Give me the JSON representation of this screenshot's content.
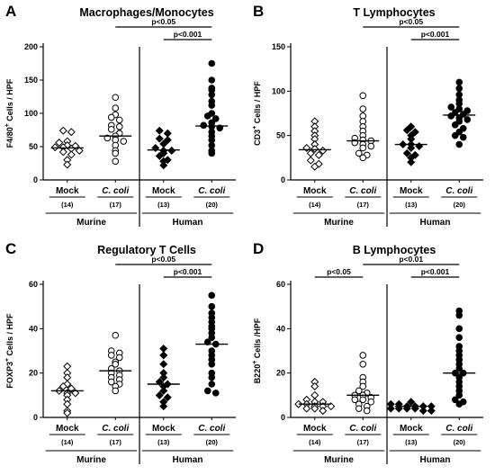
{
  "chart_data": [
    {
      "panel": "A",
      "type": "scatter",
      "title": "Macrophages/Monocytes",
      "ylabel": "F4/80",
      "ylabel_sup": "+",
      "ylabel_rest": " Cells / HPF",
      "ylim": [
        0,
        200
      ],
      "yticks": [
        "0",
        "50",
        "100",
        "150",
        "200"
      ],
      "categories": [
        {
          "name": "Mock",
          "italic": false,
          "n": "(14)",
          "marker": "open-diamond"
        },
        {
          "name": "C. coli",
          "italic": true,
          "n": "(17)",
          "marker": "open-circle"
        },
        {
          "name": "Mock",
          "italic": false,
          "n": "(13)",
          "marker": "filled-diamond"
        },
        {
          "name": "C. coli",
          "italic": true,
          "n": "(20)",
          "marker": "filled-circle"
        }
      ],
      "groups": [
        "Murine",
        "Human"
      ],
      "series": [
        {
          "values": [
            74,
            72,
            58,
            56,
            52,
            51,
            49,
            49,
            47,
            44,
            42,
            38,
            30,
            23
          ],
          "median": 48
        },
        {
          "values": [
            124,
            108,
            98,
            94,
            90,
            82,
            80,
            76,
            70,
            66,
            63,
            60,
            58,
            52,
            44,
            40,
            28
          ],
          "median": 66
        },
        {
          "values": [
            74,
            70,
            62,
            60,
            54,
            48,
            44,
            44,
            40,
            36,
            30,
            28,
            22
          ],
          "median": 45
        },
        {
          "values": [
            175,
            150,
            138,
            135,
            128,
            118,
            112,
            100,
            96,
            92,
            86,
            82,
            80,
            78,
            72,
            66,
            60,
            52,
            44,
            40
          ],
          "median": 81
        }
      ],
      "comparisons": [
        {
          "label": "p<0.05",
          "from": 1,
          "to": 3
        },
        {
          "label": "p<0.001",
          "from": 2,
          "to": 3
        }
      ]
    },
    {
      "panel": "B",
      "type": "scatter",
      "title": "T Lymphocytes",
      "ylabel": "CD3",
      "ylabel_sup": "+",
      "ylabel_rest": " Cells / HPF",
      "ylim": [
        0,
        150
      ],
      "yticks": [
        "0",
        "50",
        "100",
        "150"
      ],
      "categories": [
        {
          "name": "Mock",
          "italic": false,
          "n": "(14)",
          "marker": "open-diamond"
        },
        {
          "name": "C. coli",
          "italic": true,
          "n": "(17)",
          "marker": "open-circle"
        },
        {
          "name": "Mock",
          "italic": false,
          "n": "(13)",
          "marker": "filled-diamond"
        },
        {
          "name": "C. coli",
          "italic": true,
          "n": "(20)",
          "marker": "filled-circle"
        }
      ],
      "groups": [
        "Murine",
        "Human"
      ],
      "series": [
        {
          "values": [
            66,
            60,
            55,
            50,
            46,
            40,
            36,
            35,
            33,
            30,
            28,
            22,
            18,
            15
          ],
          "median": 34
        },
        {
          "values": [
            95,
            80,
            72,
            66,
            60,
            55,
            50,
            47,
            45,
            44,
            42,
            40,
            38,
            36,
            30,
            28,
            25
          ],
          "median": 44
        },
        {
          "values": [
            60,
            56,
            54,
            50,
            46,
            40,
            40,
            38,
            36,
            30,
            28,
            25,
            20
          ],
          "median": 40
        },
        {
          "values": [
            110,
            103,
            96,
            90,
            86,
            82,
            80,
            78,
            76,
            74,
            72,
            70,
            68,
            66,
            62,
            58,
            54,
            50,
            48,
            40
          ],
          "median": 73
        }
      ],
      "comparisons": [
        {
          "label": "p<0.05",
          "from": 1,
          "to": 3
        },
        {
          "label": "p<0.001",
          "from": 2,
          "to": 3
        }
      ]
    },
    {
      "panel": "C",
      "type": "scatter",
      "title": "Regulatory T Cells",
      "ylabel": "FOXP3",
      "ylabel_sup": "+",
      "ylabel_rest": " Cells / HPF",
      "ylim": [
        0,
        60
      ],
      "yticks": [
        "0",
        "20",
        "40",
        "60"
      ],
      "categories": [
        {
          "name": "Mock",
          "italic": false,
          "n": "(14)",
          "marker": "open-diamond"
        },
        {
          "name": "C. coli",
          "italic": true,
          "n": "(17)",
          "marker": "open-circle"
        },
        {
          "name": "Mock",
          "italic": false,
          "n": "(13)",
          "marker": "filled-diamond"
        },
        {
          "name": "C. coli",
          "italic": true,
          "n": "(20)",
          "marker": "filled-circle"
        }
      ],
      "groups": [
        "Murine",
        "Human"
      ],
      "series": [
        {
          "values": [
            23,
            20,
            18,
            15,
            14,
            13,
            12,
            11,
            11,
            10,
            8,
            6,
            3,
            2
          ],
          "median": 12
        },
        {
          "values": [
            37,
            30,
            29,
            28,
            27,
            25,
            24,
            22,
            21,
            20,
            19,
            18,
            17,
            16,
            15,
            14,
            12
          ],
          "median": 21
        },
        {
          "values": [
            31,
            28,
            24,
            20,
            18,
            16,
            15,
            14,
            12,
            10,
            9,
            7,
            5
          ],
          "median": 15
        },
        {
          "values": [
            55,
            50,
            47,
            45,
            43,
            41,
            40,
            38,
            36,
            34,
            33,
            30,
            28,
            26,
            24,
            20,
            18,
            15,
            12,
            11
          ],
          "median": 33
        }
      ],
      "comparisons": [
        {
          "label": "p<0.05",
          "from": 1,
          "to": 3
        },
        {
          "label": "p<0.001",
          "from": 2,
          "to": 3
        }
      ]
    },
    {
      "panel": "D",
      "type": "scatter",
      "title": "B Lymphocytes",
      "ylabel": "B220",
      "ylabel_sup": "+",
      "ylabel_rest": " Cells /HPF",
      "ylim": [
        0,
        60
      ],
      "yticks": [
        "0",
        "20",
        "40",
        "60"
      ],
      "categories": [
        {
          "name": "Mock",
          "italic": false,
          "n": "(14)",
          "marker": "open-diamond"
        },
        {
          "name": "C. coli",
          "italic": true,
          "n": "(17)",
          "marker": "open-circle"
        },
        {
          "name": "Mock",
          "italic": false,
          "n": "(13)",
          "marker": "filled-diamond"
        },
        {
          "name": "C. coli",
          "italic": true,
          "n": "(20)",
          "marker": "filled-circle"
        }
      ],
      "groups": [
        "Murine",
        "Human"
      ],
      "series": [
        {
          "values": [
            16,
            14,
            10,
            8,
            7,
            7,
            6,
            6,
            5,
            5,
            5,
            4,
            4,
            3
          ],
          "median": 6
        },
        {
          "values": [
            28,
            24,
            18,
            16,
            14,
            12,
            11,
            10,
            10,
            9,
            8,
            8,
            7,
            6,
            5,
            4,
            3
          ],
          "median": 10
        },
        {
          "values": [
            7,
            6,
            6,
            5,
            5,
            5,
            5,
            4,
            4,
            4,
            4,
            3,
            3
          ],
          "median": 5
        },
        {
          "values": [
            48,
            46,
            40,
            36,
            32,
            30,
            28,
            26,
            24,
            22,
            20,
            20,
            18,
            16,
            14,
            12,
            10,
            8,
            7,
            6
          ],
          "median": 20
        }
      ],
      "comparisons": [
        {
          "label": "p<0.05",
          "from": 0,
          "to": 1
        },
        {
          "label": "p<0.01",
          "from": 1,
          "to": 3
        },
        {
          "label": "p<0.001",
          "from": 2,
          "to": 3
        }
      ]
    }
  ]
}
